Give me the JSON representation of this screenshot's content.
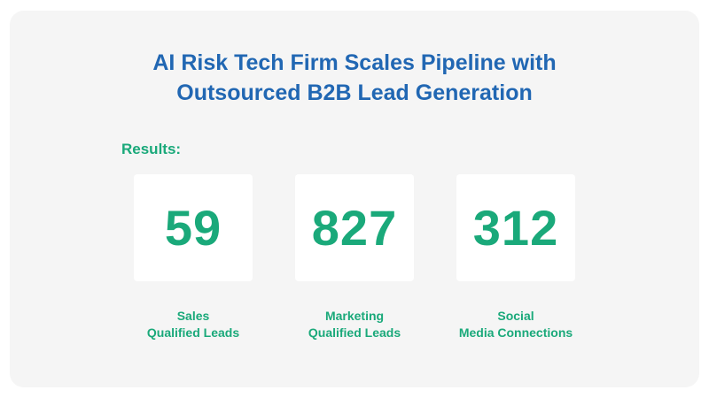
{
  "title": {
    "line1": "AI Risk Tech Firm Scales Pipeline with",
    "line2": "Outsourced B2B Lead Generation"
  },
  "results_label": "Results:",
  "stats": [
    {
      "value": "59",
      "label_line1": "Sales",
      "label_line2": "Qualified Leads"
    },
    {
      "value": "827",
      "label_line1": "Marketing",
      "label_line2": "Qualified Leads"
    },
    {
      "value": "312",
      "label_line1": "Social",
      "label_line2": "Media Connections"
    }
  ],
  "colors": {
    "title": "#2167b3",
    "accent_green": "#1aa97a",
    "card_background": "#f5f5f5",
    "stat_box_background": "#ffffff"
  }
}
